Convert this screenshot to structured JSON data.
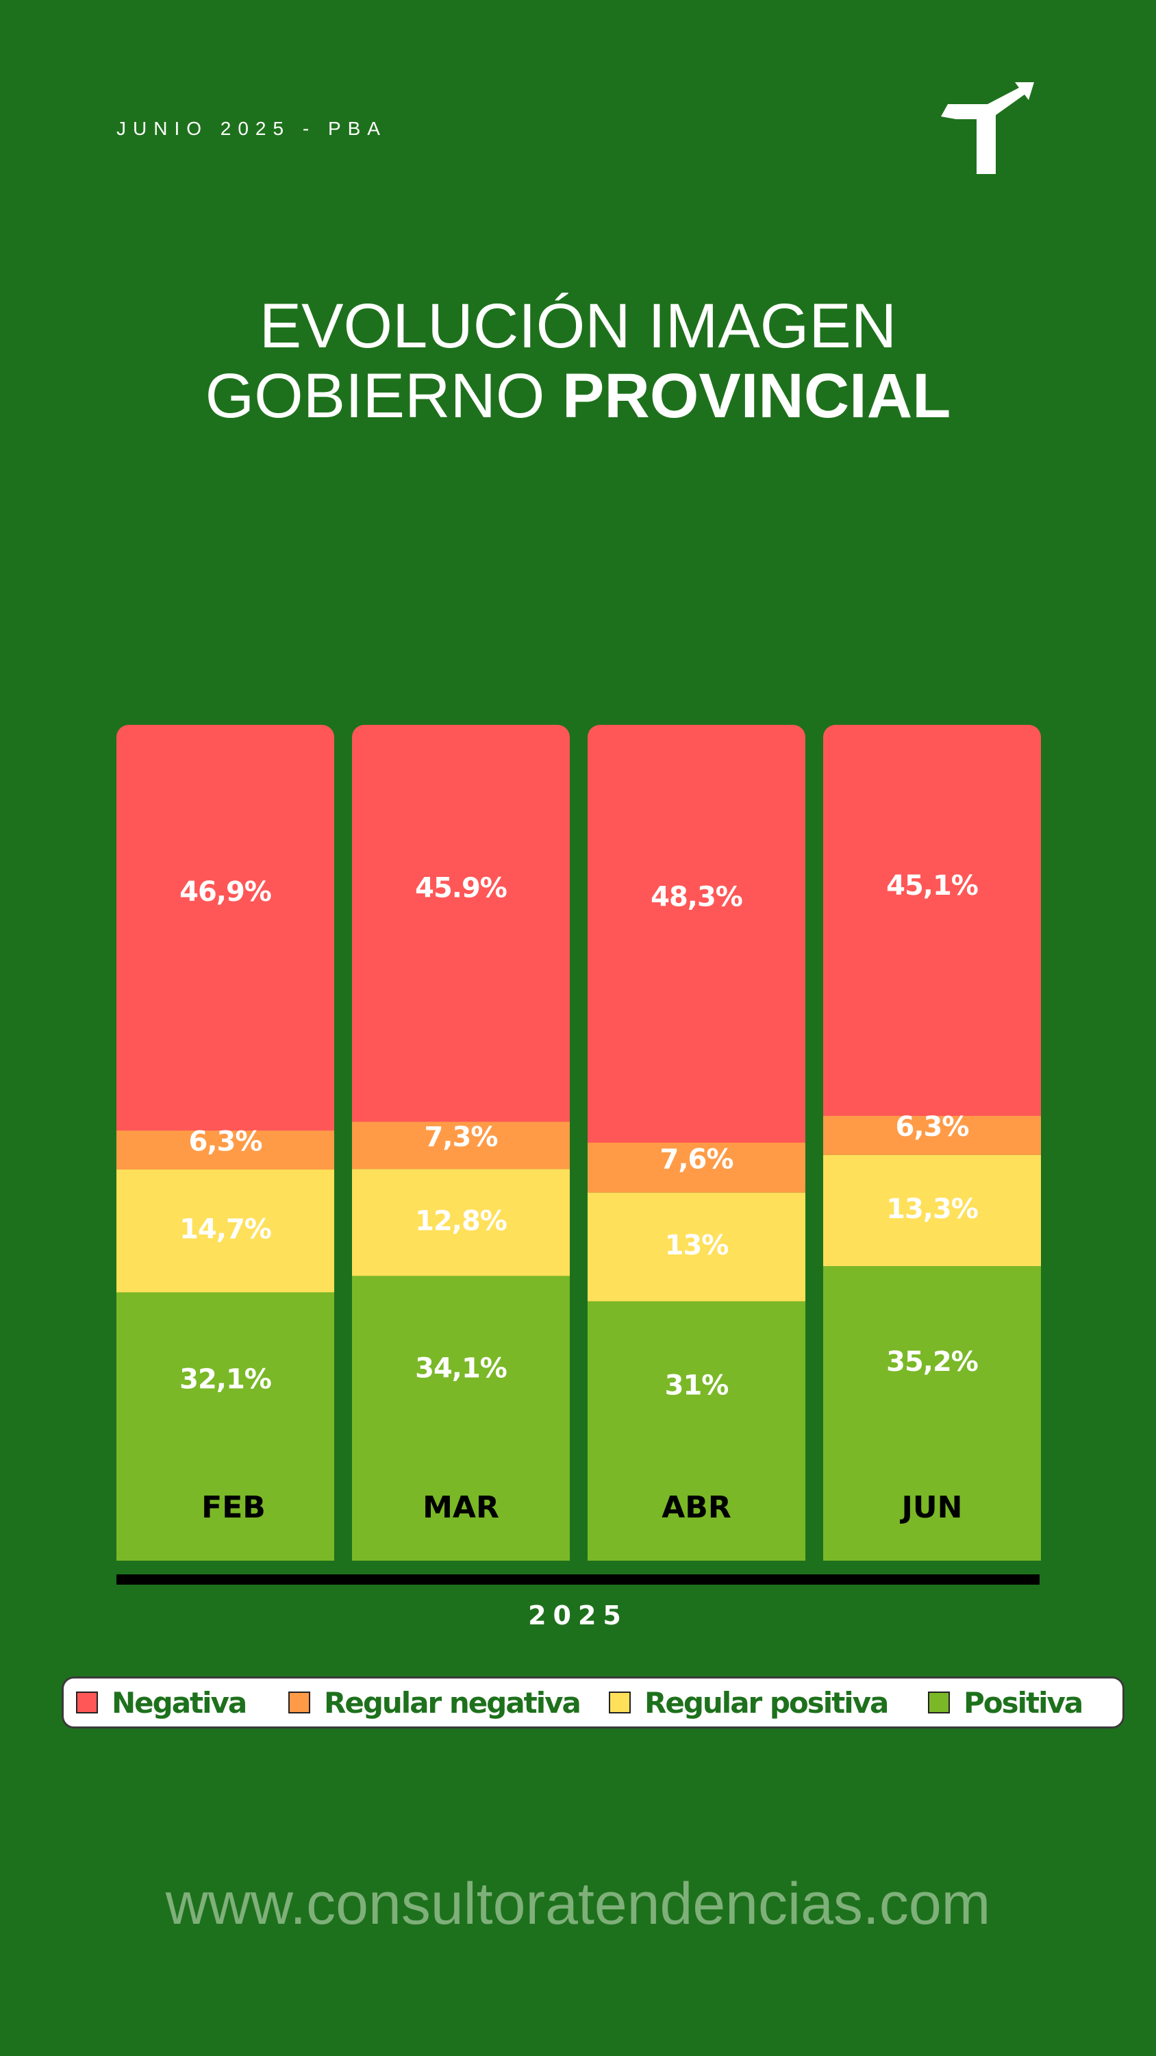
{
  "header": {
    "date": "JUNIO 2025 - PBA"
  },
  "logo": {
    "icon": "tendencias-logo-icon",
    "color": "#ffffff"
  },
  "title": {
    "line1": "EVOLUCIÓN IMAGEN",
    "line2_regular": "GOBIERNO ",
    "line2_bold": "PROVINCIAL"
  },
  "chart_data": {
    "type": "bar",
    "stacked": true,
    "xlabel": "2025",
    "ylim": [
      0,
      100
    ],
    "categories": [
      "FEB",
      "MAR",
      "ABR",
      "JUN"
    ],
    "series": [
      {
        "name": "Positiva",
        "color": "#7ab827",
        "values": [
          32.1,
          34.1,
          31,
          35.2
        ],
        "labels": [
          "32,1%",
          "34,1%",
          "31%",
          "35,2%"
        ]
      },
      {
        "name": "Regular positiva",
        "color": "#ffe05a",
        "values": [
          14.7,
          12.8,
          13,
          13.3
        ],
        "labels": [
          "14,7%",
          "12,8%",
          "13%",
          "13,3%"
        ]
      },
      {
        "name": "Regular negativa",
        "color": "#ff9b47",
        "values": [
          6.3,
          7.3,
          7.6,
          6.3
        ],
        "labels": [
          "6,3%",
          "7,3%",
          "7,6%",
          "6,3%"
        ]
      },
      {
        "name": "Negativa",
        "color": "#ff5757",
        "values": [
          46.9,
          45.9,
          48.3,
          45.1
        ],
        "labels": [
          "46,9%",
          "45.9%",
          "48,3%",
          "45,1%"
        ]
      }
    ],
    "legend": [
      "Negativa",
      "Regular negativa",
      "Regular positiva",
      "Positiva"
    ]
  },
  "website": "www.consultoratendencias.com"
}
